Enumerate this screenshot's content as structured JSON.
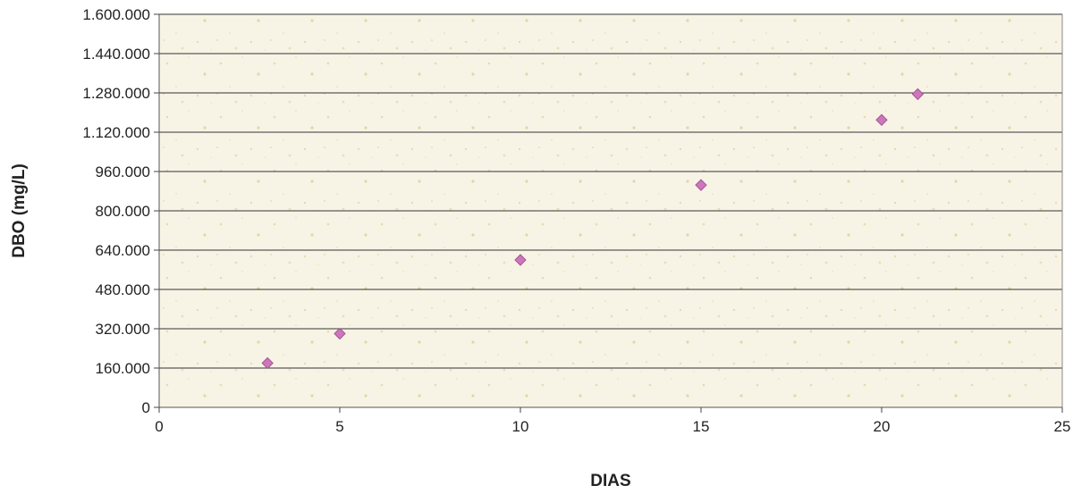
{
  "chart_data": {
    "type": "scatter",
    "title": "",
    "xlabel": "DIAS",
    "ylabel": "DBO (mg/L)",
    "xlim": [
      0,
      25
    ],
    "ylim": [
      0,
      1600000
    ],
    "x_ticks": [
      0,
      5,
      10,
      15,
      20,
      25
    ],
    "x_tick_labels": [
      "0",
      "5",
      "10",
      "15",
      "20",
      "25"
    ],
    "y_ticks": [
      0,
      160000,
      320000,
      480000,
      640000,
      800000,
      960000,
      1120000,
      1280000,
      1440000,
      1600000
    ],
    "y_tick_labels": [
      "0",
      "160.000",
      "320.000",
      "480.000",
      "640.000",
      "800.000",
      "960.000",
      "1.120.000",
      "1.280.000",
      "1.440.000",
      "1.600.000"
    ],
    "grid": "horizontal",
    "legend": "none",
    "series": [
      {
        "marker": "diamond",
        "color": "#cc77bb",
        "points": [
          {
            "x": 3,
            "y": 180000
          },
          {
            "x": 5,
            "y": 300000
          },
          {
            "x": 10,
            "y": 600000
          },
          {
            "x": 15,
            "y": 905000
          },
          {
            "x": 20,
            "y": 1170000
          },
          {
            "x": 21,
            "y": 1275000
          }
        ]
      }
    ],
    "colors": {
      "plot_background": "#f7f4e6",
      "gridline": "#333333",
      "marker": "#cc77bb",
      "marker_edge": "#a65596"
    }
  }
}
